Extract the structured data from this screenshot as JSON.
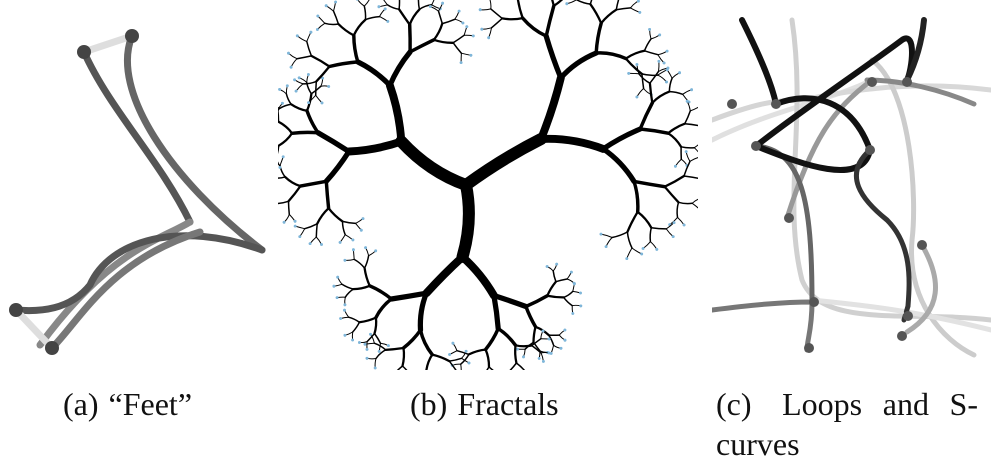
{
  "figure": {
    "subfigures": [
      {
        "id": "a",
        "label": "(a)",
        "title": "“Feet”"
      },
      {
        "id": "b",
        "label": "(b)",
        "title": "Fractals"
      },
      {
        "id": "c",
        "label": "(c)",
        "title_line1": "Loops and S-",
        "title_line2": "curves"
      }
    ]
  }
}
